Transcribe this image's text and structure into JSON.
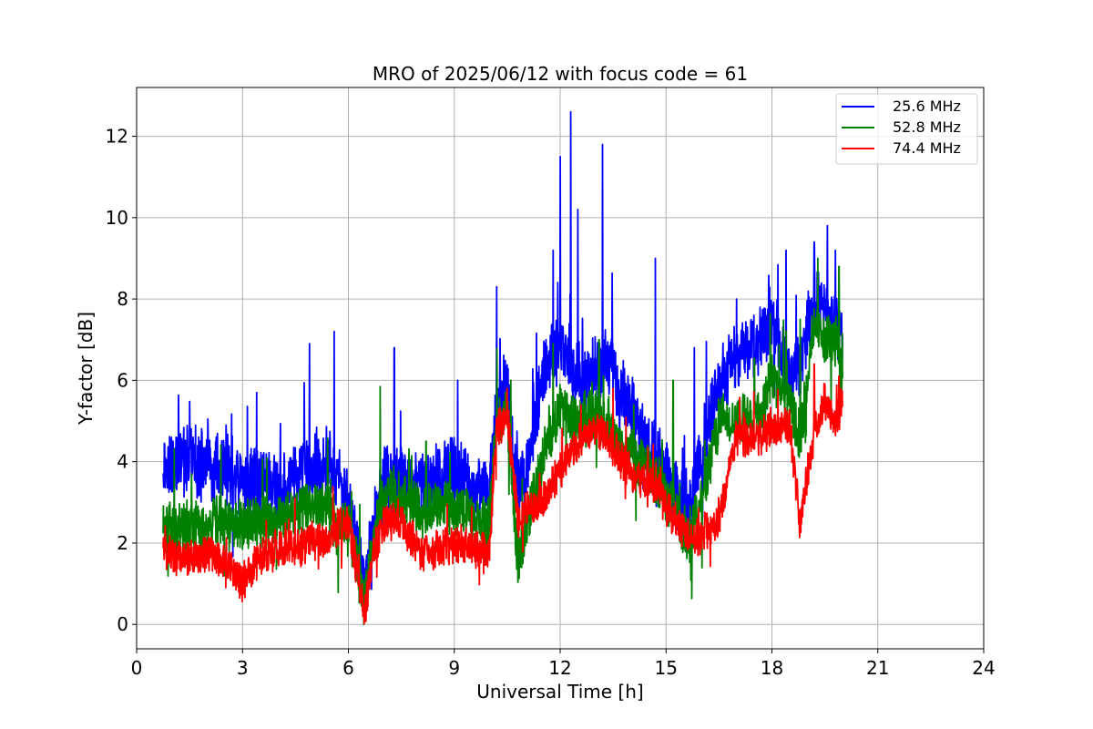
{
  "chart_data": {
    "type": "line",
    "title": "MRO of 2025/06/12 with focus code = 61",
    "xlabel": "Universal Time [h]",
    "ylabel": "Y-factor [dB]",
    "xlim": [
      0,
      24
    ],
    "ylim": [
      -0.6,
      13.2
    ],
    "xticks": [
      "0",
      "3",
      "6",
      "9",
      "12",
      "15",
      "18",
      "21",
      "24"
    ],
    "yticks": [
      "0",
      "2",
      "4",
      "6",
      "8",
      "10",
      "12"
    ],
    "grid": true,
    "legend_position": "top-right",
    "series": [
      {
        "name": "25.6 MHz",
        "color": "#0000ff",
        "x": [
          0.75,
          1.0,
          1.5,
          2.0,
          2.5,
          3.0,
          3.5,
          4.0,
          4.5,
          5.0,
          5.5,
          5.7,
          6.0,
          6.3,
          6.45,
          6.7,
          7.0,
          7.5,
          8.0,
          8.5,
          9.0,
          9.5,
          10.0,
          10.2,
          10.5,
          10.8,
          11.2,
          11.6,
          12.0,
          12.3,
          12.6,
          13.0,
          13.3,
          13.6,
          14.0,
          14.5,
          14.8,
          15.0,
          15.3,
          15.6,
          16.0,
          16.5,
          17.0,
          17.5,
          18.0,
          18.5,
          18.8,
          19.2,
          19.5,
          19.8,
          20.0
        ],
        "values": [
          4.0,
          3.9,
          4.1,
          3.8,
          3.9,
          3.5,
          3.6,
          3.3,
          3.7,
          3.9,
          3.9,
          3.5,
          3.0,
          1.6,
          0.8,
          2.5,
          3.5,
          3.6,
          3.4,
          3.6,
          3.8,
          3.3,
          3.2,
          5.5,
          5.8,
          3.2,
          4.5,
          6.5,
          6.8,
          6.5,
          6.0,
          6.2,
          6.6,
          6.0,
          5.5,
          4.2,
          4.2,
          3.8,
          3.2,
          2.5,
          4.5,
          6.0,
          6.5,
          6.8,
          7.5,
          6.0,
          6.5,
          8.0,
          7.5,
          7.5,
          7.0
        ],
        "peaks": [
          [
            3.4,
            5.7
          ],
          [
            4.9,
            6.9
          ],
          [
            5.6,
            7.2
          ],
          [
            7.3,
            6.8
          ],
          [
            9.1,
            6.0
          ],
          [
            10.2,
            8.3
          ],
          [
            11.8,
            9.2
          ],
          [
            12.0,
            11.5
          ],
          [
            12.3,
            12.6
          ],
          [
            12.5,
            10.2
          ],
          [
            13.2,
            11.8
          ],
          [
            14.7,
            9.0
          ],
          [
            15.8,
            6.8
          ],
          [
            17.0,
            8.0
          ],
          [
            18.4,
            9.2
          ],
          [
            19.2,
            9.4
          ],
          [
            19.8,
            9.2
          ]
        ]
      },
      {
        "name": "52.8 MHz",
        "color": "#008000",
        "x": [
          0.75,
          1.0,
          1.5,
          2.0,
          2.5,
          3.0,
          3.5,
          4.0,
          4.5,
          5.0,
          5.5,
          5.7,
          6.0,
          6.3,
          6.45,
          6.7,
          7.0,
          7.5,
          8.0,
          8.5,
          9.0,
          9.5,
          10.0,
          10.2,
          10.5,
          10.8,
          11.2,
          11.6,
          12.0,
          12.3,
          12.6,
          13.0,
          13.3,
          13.6,
          14.0,
          14.5,
          14.8,
          15.0,
          15.3,
          15.6,
          16.0,
          16.5,
          17.0,
          17.5,
          18.0,
          18.5,
          18.8,
          19.2,
          19.5,
          19.8,
          20.0
        ],
        "values": [
          2.5,
          2.4,
          2.5,
          2.3,
          2.6,
          2.4,
          2.6,
          2.6,
          2.7,
          3.0,
          2.8,
          2.3,
          2.5,
          1.2,
          0.6,
          2.2,
          3.2,
          3.2,
          2.8,
          2.9,
          2.9,
          2.6,
          2.5,
          5.0,
          5.3,
          1.5,
          3.0,
          4.5,
          5.3,
          5.2,
          5.0,
          5.2,
          5.0,
          4.5,
          4.2,
          3.8,
          3.5,
          3.0,
          2.8,
          2.0,
          3.0,
          5.0,
          5.0,
          5.0,
          6.0,
          5.5,
          4.5,
          7.5,
          7.0,
          7.0,
          6.0
        ],
        "peaks": [
          [
            6.9,
            5.85
          ],
          [
            8.2,
            4.5
          ],
          [
            10.6,
            6.0
          ],
          [
            11.8,
            6.9
          ],
          [
            13.1,
            7.0
          ],
          [
            15.2,
            6.0
          ],
          [
            17.5,
            6.5
          ],
          [
            18.8,
            7.5
          ],
          [
            19.3,
            9.0
          ],
          [
            19.9,
            8.8
          ]
        ]
      },
      {
        "name": "74.4 MHz",
        "color": "#ff0000",
        "x": [
          0.75,
          1.0,
          1.5,
          2.0,
          2.5,
          3.0,
          3.5,
          4.0,
          4.5,
          5.0,
          5.5,
          5.7,
          6.0,
          6.3,
          6.45,
          6.7,
          7.0,
          7.5,
          8.0,
          8.5,
          9.0,
          9.5,
          10.0,
          10.2,
          10.5,
          10.8,
          11.2,
          11.6,
          12.0,
          12.3,
          12.6,
          13.0,
          13.3,
          13.6,
          14.0,
          14.5,
          14.8,
          15.0,
          15.3,
          15.6,
          16.0,
          16.5,
          17.0,
          17.5,
          18.0,
          18.5,
          18.8,
          19.2,
          19.5,
          19.8,
          20.0
        ],
        "values": [
          2.0,
          1.7,
          1.6,
          1.7,
          1.6,
          1.0,
          1.6,
          1.9,
          1.8,
          2.1,
          2.1,
          2.4,
          2.5,
          1.0,
          0.3,
          1.8,
          2.5,
          2.6,
          1.8,
          1.8,
          2.0,
          1.9,
          1.8,
          4.8,
          5.2,
          2.6,
          2.9,
          3.2,
          3.8,
          4.3,
          4.5,
          4.8,
          4.6,
          4.2,
          3.7,
          3.4,
          3.3,
          2.9,
          2.5,
          2.2,
          2.2,
          2.5,
          4.7,
          4.5,
          4.9,
          4.9,
          2.4,
          4.8,
          5.5,
          5.0,
          5.5
        ],
        "peaks": [
          [
            5.6,
            2.8
          ],
          [
            10.5,
            5.8
          ],
          [
            12.6,
            4.2
          ],
          [
            13.5,
            5.8
          ],
          [
            17.2,
            5.2
          ],
          [
            19.2,
            6.4
          ],
          [
            19.9,
            6.1
          ]
        ]
      }
    ]
  }
}
